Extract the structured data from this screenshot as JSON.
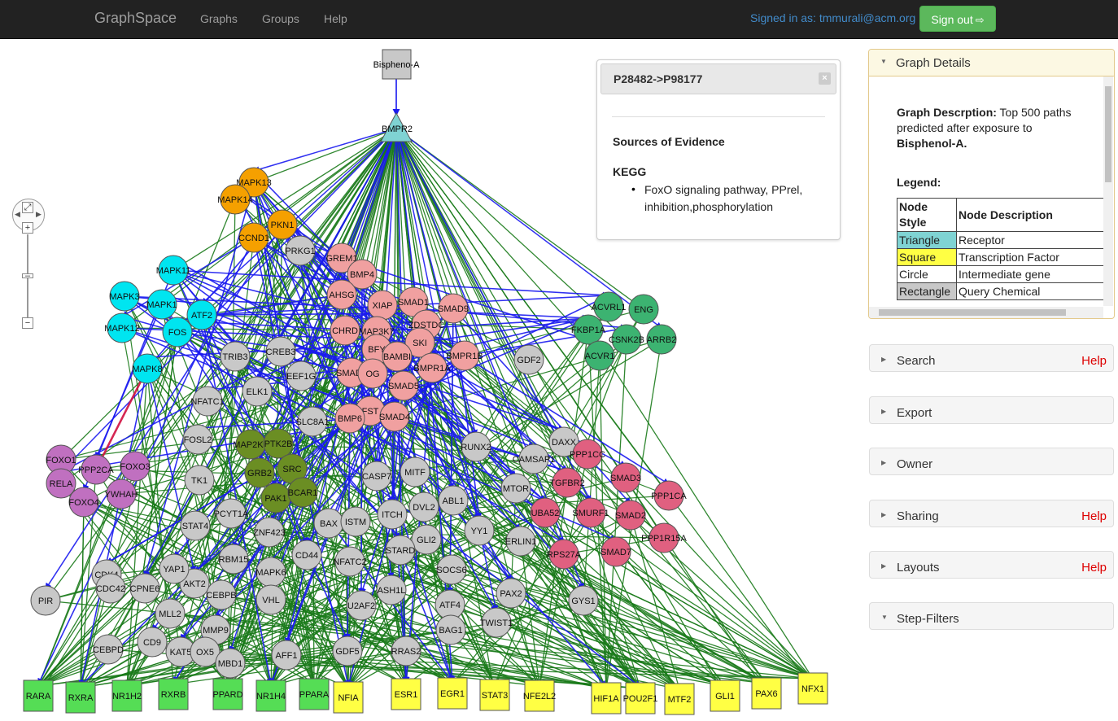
{
  "navbar": {
    "brand": "GraphSpace",
    "links": [
      "Graphs",
      "Groups",
      "Help"
    ],
    "signed_in": "Signed in as: tmmurali@acm.org",
    "signout": "Sign out"
  },
  "popup": {
    "title": "P28482->P98177",
    "close": "×",
    "heading": "Sources of Evidence",
    "source": "KEGG",
    "item": "FoxO signaling pathway, PPrel, inhibition,phosphorylation"
  },
  "details": {
    "title": "Graph Details",
    "desc_label": "Graph Descrption:",
    "desc_text": " Top 500 paths predicted after exposure to ",
    "desc_bold": "Bisphenol-A.",
    "legend_label": "Legend:",
    "legend_head": [
      "Node Style",
      "Node Description"
    ],
    "legend_rows": [
      {
        "style": "Triangle",
        "desc": "Receptor",
        "color": "#7fd3d3"
      },
      {
        "style": "Square",
        "desc": "Transcription Factor",
        "color": "#ffff44"
      },
      {
        "style": "Circle",
        "desc": "Intermediate gene",
        "color": "#ffffff"
      },
      {
        "style": "Rectangle",
        "desc": "Query Chemical",
        "color": "#c8c8c8"
      }
    ]
  },
  "panels": [
    {
      "title": "Search",
      "help": "Help"
    },
    {
      "title": "Export",
      "help": ""
    },
    {
      "title": "Owner",
      "help": ""
    },
    {
      "title": "Sharing",
      "help": "Help"
    },
    {
      "title": "Layouts",
      "help": "Help"
    },
    {
      "title": "Step-Filters",
      "help": ""
    }
  ],
  "graph": {
    "colors": {
      "orange": "#f5a000",
      "cyan": "#00e5f0",
      "salmon": "#f0a0a0",
      "gray": "#c8c8c8",
      "olive": "#6b8e23",
      "purple": "#c070c0",
      "green": "#3cb371",
      "rose": "#e06080",
      "tf_yellow": "#ffff44",
      "tf_green": "#55dd55",
      "receptor": "#7fd3d3",
      "edge_blue": "#1a1af0",
      "edge_green": "#1a7a1a",
      "edge_red": "#d01040"
    },
    "chemical": "Bispheno-A",
    "receptor": "BMPR2",
    "nodes": [
      [
        "MAPK13",
        "orange",
        312,
        224
      ],
      [
        "MAPK14",
        "orange",
        289,
        245
      ],
      [
        "PKN1",
        "orange",
        347,
        276
      ],
      [
        "CCND1",
        "orange",
        312,
        292
      ],
      [
        "MAPK11",
        "cyan",
        213,
        332
      ],
      [
        "MAPK3",
        "cyan",
        153,
        364
      ],
      [
        "MAPK1",
        "cyan",
        199,
        374
      ],
      [
        "ATF2",
        "cyan",
        248,
        387
      ],
      [
        "MAPK12",
        "cyan",
        150,
        403
      ],
      [
        "FOS",
        "cyan",
        218,
        408
      ],
      [
        "MAPK8",
        "cyan",
        181,
        453
      ],
      [
        "PRKG1",
        "gray",
        369,
        308
      ],
      [
        "GREM1",
        "salmon",
        420,
        317
      ],
      [
        "BMP4",
        "salmon",
        445,
        337
      ],
      [
        "AHSG",
        "salmon",
        420,
        362
      ],
      [
        "XIAP",
        "salmon",
        470,
        375
      ],
      [
        "SMAD1",
        "salmon",
        508,
        371
      ],
      [
        "SMAD9",
        "salmon",
        557,
        379
      ],
      [
        "CHRD",
        "salmon",
        424,
        406
      ],
      [
        "MAP3K7",
        "salmon",
        463,
        407
      ],
      [
        "ZDSTDC",
        "salmon",
        524,
        399
      ],
      [
        "SKI",
        "salmon",
        516,
        421
      ],
      [
        "BFY",
        "salmon",
        463,
        429
      ],
      [
        "BAMBI",
        "salmon",
        488,
        438
      ],
      [
        "BMPR1B",
        "salmon",
        571,
        437
      ],
      [
        "BMPR1A",
        "salmon",
        531,
        452
      ],
      [
        "SMAD6",
        "salmon",
        432,
        458
      ],
      [
        "OG",
        "salmon",
        458,
        459
      ],
      [
        "SMAD5",
        "salmon",
        496,
        474
      ],
      [
        "FST",
        "salmon",
        455,
        505
      ],
      [
        "BMP6",
        "salmon",
        430,
        514
      ],
      [
        "SMAD4",
        "salmon",
        485,
        512
      ],
      [
        "TRIB3",
        "gray",
        289,
        438
      ],
      [
        "CREB3",
        "gray",
        345,
        432
      ],
      [
        "EEF1G",
        "gray",
        370,
        462
      ],
      [
        "ELK1",
        "gray",
        316,
        481
      ],
      [
        "NFATC1",
        "gray",
        255,
        493
      ],
      [
        "SLC8A1",
        "gray",
        384,
        518
      ],
      [
        "FOSL2",
        "gray",
        243,
        540
      ],
      [
        "GDF2",
        "gray",
        650,
        442
      ],
      [
        "MAP2K1",
        "olive",
        308,
        546
      ],
      [
        "PTK2B",
        "olive",
        342,
        545
      ],
      [
        "GRB2",
        "olive",
        319,
        581
      ],
      [
        "SRC",
        "olive",
        359,
        576
      ],
      [
        "PAK1",
        "olive",
        339,
        612
      ],
      [
        "BCAR1",
        "olive",
        372,
        605
      ],
      [
        "FOXO1",
        "purple",
        75,
        565
      ],
      [
        "PPP2CA",
        "purple",
        118,
        577
      ],
      [
        "FOXO3",
        "purple",
        166,
        573
      ],
      [
        "RELA",
        "purple",
        75,
        594
      ],
      [
        "YWHAH",
        "purple",
        149,
        607
      ],
      [
        "FOXO4",
        "purple",
        103,
        617
      ],
      [
        "TK1",
        "gray",
        245,
        590
      ],
      [
        "PCYT1A",
        "gray",
        284,
        631
      ],
      [
        "STAT4",
        "gray",
        240,
        646
      ],
      [
        "ZNF423",
        "gray",
        331,
        654
      ],
      [
        "RBM15",
        "gray",
        287,
        687
      ],
      [
        "CD44",
        "gray",
        377,
        682
      ],
      [
        "MAPK6",
        "gray",
        333,
        703
      ],
      [
        "BAX",
        "gray",
        404,
        643
      ],
      [
        "ISTM",
        "gray",
        437,
        641
      ],
      [
        "NFATC2",
        "gray",
        430,
        690
      ],
      [
        "ITCH",
        "gray",
        482,
        632
      ],
      [
        "CASP7",
        "gray",
        463,
        585
      ],
      [
        "MITF",
        "gray",
        510,
        580
      ],
      [
        "DVL2",
        "gray",
        521,
        623
      ],
      [
        "ABL1",
        "gray",
        557,
        615
      ],
      [
        "GLI2",
        "gray",
        524,
        663
      ],
      [
        "STARD",
        "gray",
        492,
        676
      ],
      [
        "YY1",
        "gray",
        589,
        652
      ],
      [
        "RUNX2",
        "gray",
        585,
        549
      ],
      [
        "SOCS6",
        "gray",
        555,
        700
      ],
      [
        "ASH1L",
        "gray",
        481,
        725
      ],
      [
        "U2AF2",
        "gray",
        444,
        744
      ],
      [
        "ATF4",
        "gray",
        553,
        743
      ],
      [
        "PAX2",
        "gray",
        628,
        729
      ],
      [
        "BAG1",
        "gray",
        554,
        774
      ],
      [
        "TWIST1",
        "gray",
        610,
        765
      ],
      [
        "GDF5",
        "gray",
        427,
        800
      ],
      [
        "RRAS2",
        "gray",
        499,
        800
      ],
      [
        "DAXX",
        "gray",
        693,
        543
      ],
      [
        "CAMSAP1",
        "gray",
        656,
        564
      ],
      [
        "MTOR",
        "gray",
        634,
        600
      ],
      [
        "ERLIN1",
        "gray",
        640,
        665
      ],
      [
        "GYS1",
        "gray",
        717,
        738
      ],
      [
        "AKT2",
        "gray",
        239,
        717
      ],
      [
        "YAP1",
        "gray",
        214,
        699
      ],
      [
        "CEBPB",
        "gray",
        272,
        731
      ],
      [
        "VHL",
        "gray",
        333,
        737
      ],
      [
        "CDK4",
        "gray",
        131,
        706
      ],
      [
        "CDC42",
        "gray",
        136,
        723
      ],
      [
        "CPNE6",
        "gray",
        178,
        723
      ],
      [
        "MLL2",
        "gray",
        209,
        754
      ],
      [
        "MMP9",
        "gray",
        265,
        774
      ],
      [
        "CEBPD",
        "gray",
        133,
        798
      ],
      [
        "CD9",
        "gray",
        187,
        789
      ],
      [
        "KAT5",
        "gray",
        222,
        801
      ],
      [
        "OX5",
        "gray",
        252,
        801
      ],
      [
        "MBD1",
        "gray",
        283,
        815
      ],
      [
        "AFF1",
        "gray",
        352,
        805
      ],
      [
        "PIR",
        "gray",
        56,
        738
      ],
      [
        "ACVRL1",
        "green",
        748,
        377
      ],
      [
        "ENG",
        "green",
        791,
        380
      ],
      [
        "FKBP1A",
        "green",
        723,
        405
      ],
      [
        "CSNK2B",
        "green",
        770,
        417
      ],
      [
        "ARRB2",
        "green",
        813,
        417
      ],
      [
        "ACVR1",
        "green",
        737,
        437
      ],
      [
        "PPP1CC",
        "rose",
        722,
        558
      ],
      [
        "TGFBR2",
        "rose",
        697,
        593
      ],
      [
        "SMAD3",
        "rose",
        769,
        587
      ],
      [
        "PPP1CA",
        "rose",
        822,
        609
      ],
      [
        "UBA52",
        "rose",
        670,
        630
      ],
      [
        "SMURF1",
        "rose",
        726,
        630
      ],
      [
        "SMAD2",
        "rose",
        775,
        633
      ],
      [
        "PPP1R15A",
        "rose",
        816,
        661
      ],
      [
        "RPS27A",
        "rose",
        693,
        681
      ],
      [
        "SMAD7",
        "rose",
        757,
        678
      ]
    ],
    "tfs": [
      [
        "RARA",
        "tf_green",
        47,
        855
      ],
      [
        "RXRA",
        "tf_green",
        99,
        857
      ],
      [
        "NR1H2",
        "tf_green",
        156,
        855
      ],
      [
        "RXRB",
        "tf_green",
        213,
        853
      ],
      [
        "PPARD",
        "tf_green",
        280,
        853
      ],
      [
        "NR1H4",
        "tf_green",
        333,
        855
      ],
      [
        "PPARA",
        "tf_green",
        386,
        853
      ],
      [
        "NFIA",
        "tf_yellow",
        428,
        857
      ],
      [
        "ESR1",
        "tf_yellow",
        499,
        853
      ],
      [
        "EGR1",
        "tf_yellow",
        556,
        852
      ],
      [
        "STAT3",
        "tf_yellow",
        608,
        854
      ],
      [
        "NFE2L2",
        "tf_yellow",
        663,
        855
      ],
      [
        "HIF1A",
        "tf_yellow",
        745,
        858
      ],
      [
        "POU2F1",
        "tf_yellow",
        787,
        858
      ],
      [
        "MTF2",
        "tf_yellow",
        835,
        859
      ],
      [
        "GLI1",
        "tf_yellow",
        891,
        855
      ],
      [
        "PAX6",
        "tf_yellow",
        942,
        852
      ],
      [
        "NFX1",
        "tf_yellow",
        999,
        846
      ]
    ]
  }
}
